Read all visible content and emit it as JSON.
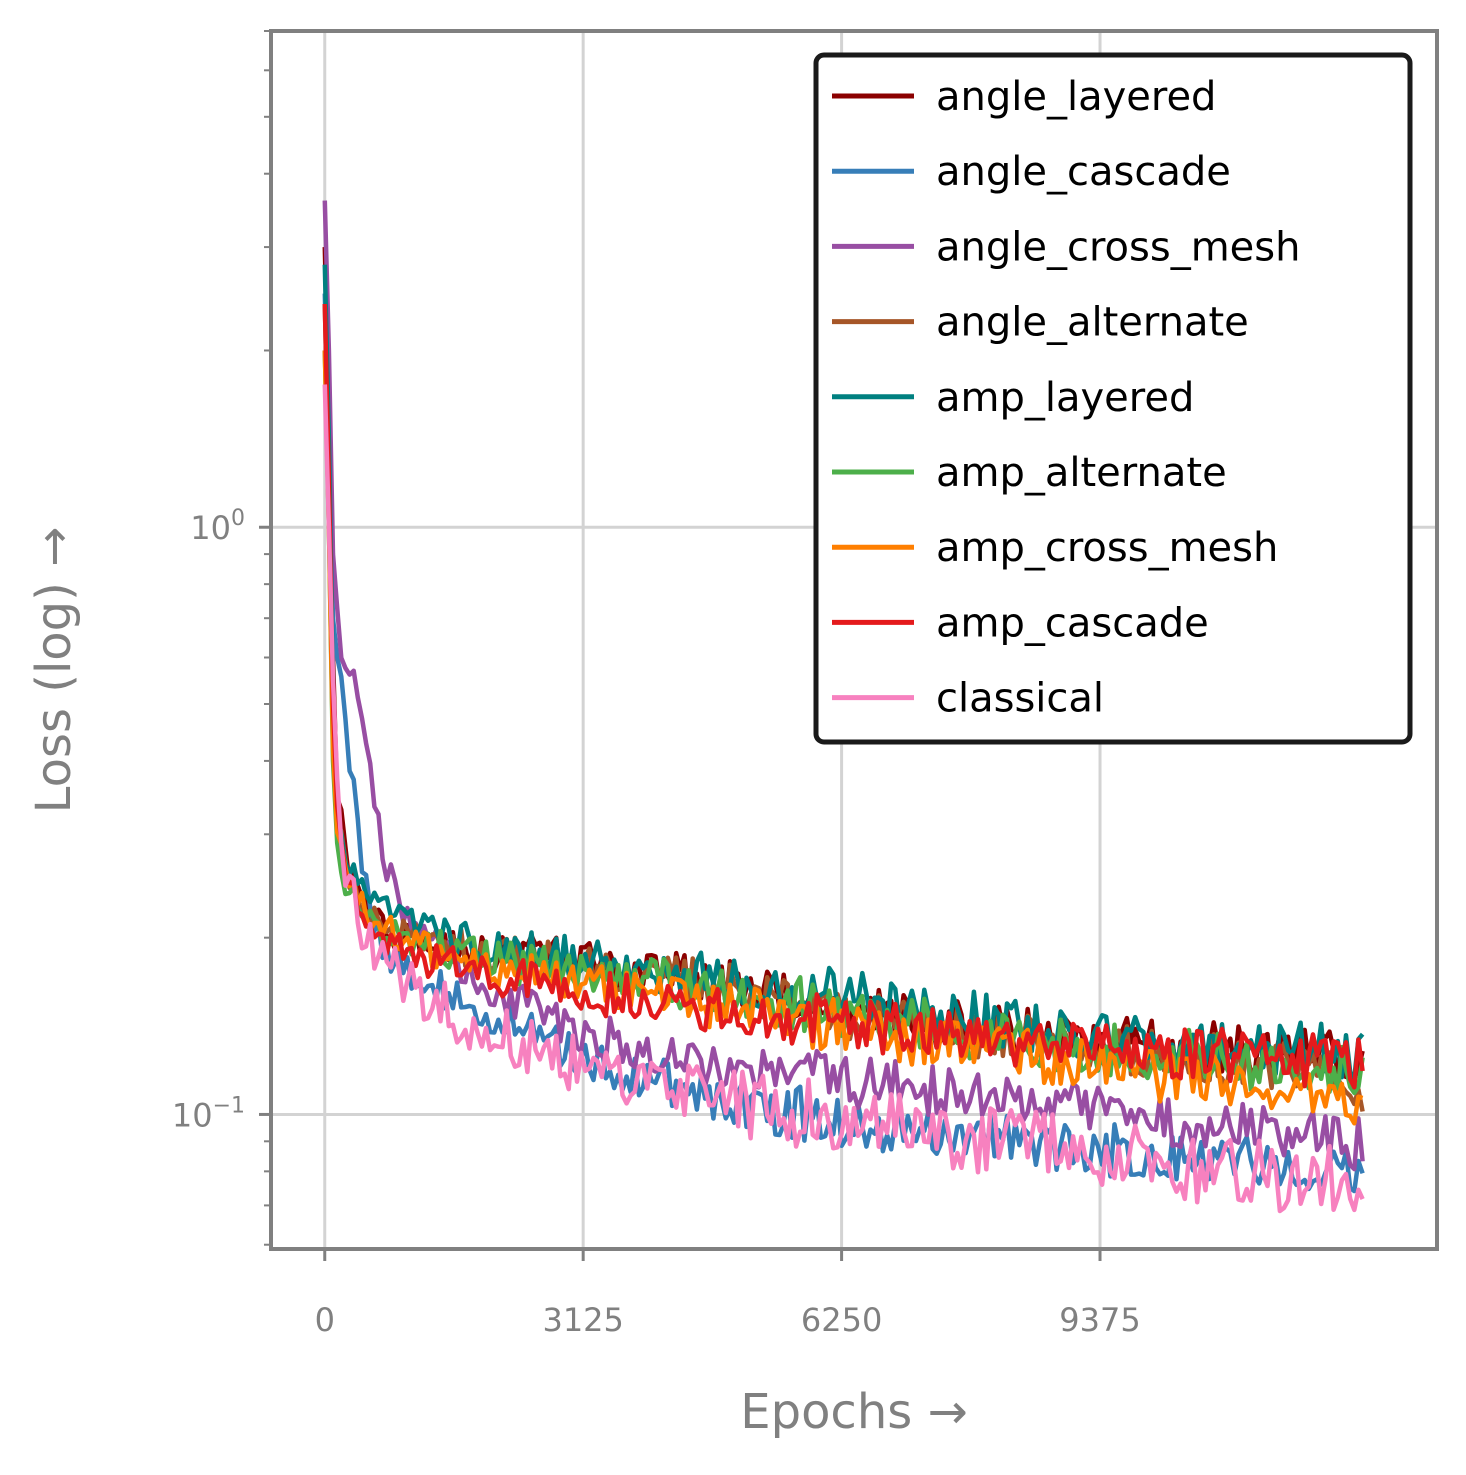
{
  "chart_data": {
    "type": "line",
    "xlabel": "Epochs →",
    "ylabel": "Loss (log) →",
    "yscale": "log",
    "xlim": [
      -650,
      13450
    ],
    "ylim": [
      0.059,
      7.0
    ],
    "xticks": [
      0,
      3125,
      6250,
      9375
    ],
    "yticks": [
      {
        "value": 1.0,
        "base": "10",
        "exp": "0"
      },
      {
        "value": 0.1,
        "base": "10",
        "exp": "−1"
      }
    ],
    "grid": true,
    "legend_position": "top-right",
    "series": [
      {
        "name": "angle_layered",
        "color": "#8b0000",
        "points": [
          [
            0,
            3.0
          ],
          [
            50,
            1.5
          ],
          [
            100,
            0.6
          ],
          [
            150,
            0.36
          ],
          [
            250,
            0.27
          ],
          [
            400,
            0.235
          ],
          [
            600,
            0.215
          ],
          [
            900,
            0.2
          ],
          [
            1300,
            0.195
          ],
          [
            1800,
            0.19
          ],
          [
            2300,
            0.187
          ],
          [
            2800,
            0.185
          ],
          [
            3300,
            0.18
          ],
          [
            3800,
            0.176
          ],
          [
            4300,
            0.172
          ],
          [
            4800,
            0.167
          ],
          [
            5300,
            0.161
          ],
          [
            5800,
            0.156
          ],
          [
            6300,
            0.151
          ],
          [
            6800,
            0.147
          ],
          [
            7300,
            0.143
          ],
          [
            7800,
            0.14
          ],
          [
            8300,
            0.137
          ],
          [
            8800,
            0.135
          ],
          [
            9300,
            0.133
          ],
          [
            9800,
            0.131
          ],
          [
            10300,
            0.13
          ],
          [
            10800,
            0.129
          ],
          [
            11300,
            0.128
          ],
          [
            11800,
            0.128
          ],
          [
            12300,
            0.127
          ],
          [
            12550,
            0.128
          ]
        ]
      },
      {
        "name": "angle_cascade",
        "color": "#377eb8",
        "points": [
          [
            0,
            2.5
          ],
          [
            50,
            1.3
          ],
          [
            100,
            0.7
          ],
          [
            200,
            0.55
          ],
          [
            300,
            0.4
          ],
          [
            450,
            0.27
          ],
          [
            600,
            0.21
          ],
          [
            800,
            0.185
          ],
          [
            1100,
            0.172
          ],
          [
            1500,
            0.16
          ],
          [
            2000,
            0.148
          ],
          [
            2500,
            0.137
          ],
          [
            3000,
            0.127
          ],
          [
            3500,
            0.12
          ],
          [
            4000,
            0.114
          ],
          [
            4500,
            0.109
          ],
          [
            5000,
            0.105
          ],
          [
            5500,
            0.102
          ],
          [
            6000,
            0.099
          ],
          [
            6500,
            0.097
          ],
          [
            7000,
            0.095
          ],
          [
            7500,
            0.093
          ],
          [
            8000,
            0.092
          ],
          [
            8500,
            0.09
          ],
          [
            9000,
            0.089
          ],
          [
            9500,
            0.087
          ],
          [
            10000,
            0.086
          ],
          [
            10500,
            0.085
          ],
          [
            11000,
            0.084
          ],
          [
            11500,
            0.083
          ],
          [
            12000,
            0.082
          ],
          [
            12550,
            0.082
          ]
        ]
      },
      {
        "name": "angle_cross_mesh",
        "color": "#984ea3",
        "points": [
          [
            0,
            3.6
          ],
          [
            50,
            2.0
          ],
          [
            100,
            0.9
          ],
          [
            200,
            0.62
          ],
          [
            300,
            0.58
          ],
          [
            400,
            0.5
          ],
          [
            500,
            0.42
          ],
          [
            600,
            0.35
          ],
          [
            700,
            0.28
          ],
          [
            850,
            0.24
          ],
          [
            1000,
            0.215
          ],
          [
            1300,
            0.195
          ],
          [
            1700,
            0.175
          ],
          [
            2200,
            0.158
          ],
          [
            2700,
            0.145
          ],
          [
            3200,
            0.137
          ],
          [
            3700,
            0.131
          ],
          [
            4200,
            0.126
          ],
          [
            4700,
            0.122
          ],
          [
            5200,
            0.119
          ],
          [
            5700,
            0.117
          ],
          [
            6200,
            0.114
          ],
          [
            6700,
            0.112
          ],
          [
            7200,
            0.11
          ],
          [
            7700,
            0.108
          ],
          [
            8200,
            0.106
          ],
          [
            8700,
            0.104
          ],
          [
            9200,
            0.102
          ],
          [
            9700,
            0.1
          ],
          [
            10200,
            0.098
          ],
          [
            10700,
            0.096
          ],
          [
            11200,
            0.094
          ],
          [
            11700,
            0.092
          ],
          [
            12200,
            0.09
          ],
          [
            12550,
            0.089
          ]
        ]
      },
      {
        "name": "angle_alternate",
        "color": "#a65628",
        "points": [
          [
            0,
            2.4
          ],
          [
            50,
            1.2
          ],
          [
            100,
            0.5
          ],
          [
            150,
            0.32
          ],
          [
            250,
            0.26
          ],
          [
            400,
            0.23
          ],
          [
            600,
            0.21
          ],
          [
            900,
            0.2
          ],
          [
            1300,
            0.195
          ],
          [
            1800,
            0.19
          ],
          [
            2300,
            0.186
          ],
          [
            2800,
            0.182
          ],
          [
            3300,
            0.178
          ],
          [
            3800,
            0.174
          ],
          [
            4300,
            0.17
          ],
          [
            4800,
            0.165
          ],
          [
            5300,
            0.16
          ],
          [
            5800,
            0.155
          ],
          [
            6300,
            0.15
          ],
          [
            6800,
            0.145
          ],
          [
            7300,
            0.141
          ],
          [
            7800,
            0.137
          ],
          [
            8300,
            0.134
          ],
          [
            8800,
            0.131
          ],
          [
            9300,
            0.129
          ],
          [
            9800,
            0.127
          ],
          [
            10300,
            0.125
          ],
          [
            10800,
            0.123
          ],
          [
            11300,
            0.121
          ],
          [
            11800,
            0.12
          ],
          [
            12300,
            0.12
          ],
          [
            12550,
            0.112
          ]
        ]
      },
      {
        "name": "amp_layered",
        "color": "#008080",
        "points": [
          [
            0,
            2.8
          ],
          [
            50,
            1.4
          ],
          [
            100,
            0.55
          ],
          [
            150,
            0.33
          ],
          [
            250,
            0.27
          ],
          [
            400,
            0.245
          ],
          [
            600,
            0.228
          ],
          [
            900,
            0.215
          ],
          [
            1300,
            0.205
          ],
          [
            1800,
            0.197
          ],
          [
            2300,
            0.191
          ],
          [
            2800,
            0.186
          ],
          [
            3300,
            0.182
          ],
          [
            3800,
            0.178
          ],
          [
            4300,
            0.175
          ],
          [
            4800,
            0.171
          ],
          [
            5300,
            0.167
          ],
          [
            5800,
            0.163
          ],
          [
            6300,
            0.159
          ],
          [
            6800,
            0.155
          ],
          [
            7300,
            0.151
          ],
          [
            7800,
            0.147
          ],
          [
            8300,
            0.143
          ],
          [
            8800,
            0.14
          ],
          [
            9300,
            0.137
          ],
          [
            9800,
            0.135
          ],
          [
            10300,
            0.133
          ],
          [
            10800,
            0.131
          ],
          [
            11300,
            0.13
          ],
          [
            11800,
            0.129
          ],
          [
            12300,
            0.128
          ],
          [
            12550,
            0.127
          ]
        ]
      },
      {
        "name": "amp_alternate",
        "color": "#4daf4a",
        "points": [
          [
            0,
            2.0
          ],
          [
            50,
            1.0
          ],
          [
            100,
            0.4
          ],
          [
            150,
            0.29
          ],
          [
            250,
            0.25
          ],
          [
            400,
            0.225
          ],
          [
            600,
            0.21
          ],
          [
            900,
            0.2
          ],
          [
            1300,
            0.192
          ],
          [
            1800,
            0.186
          ],
          [
            2300,
            0.181
          ],
          [
            2800,
            0.177
          ],
          [
            3300,
            0.173
          ],
          [
            3800,
            0.17
          ],
          [
            4300,
            0.166
          ],
          [
            4800,
            0.162
          ],
          [
            5300,
            0.158
          ],
          [
            5800,
            0.154
          ],
          [
            6300,
            0.15
          ],
          [
            6800,
            0.146
          ],
          [
            7300,
            0.142
          ],
          [
            7800,
            0.138
          ],
          [
            8300,
            0.135
          ],
          [
            8800,
            0.132
          ],
          [
            9300,
            0.13
          ],
          [
            9800,
            0.128
          ],
          [
            10300,
            0.126
          ],
          [
            10800,
            0.124
          ],
          [
            11300,
            0.122
          ],
          [
            11800,
            0.121
          ],
          [
            12300,
            0.12
          ],
          [
            12550,
            0.12
          ]
        ]
      },
      {
        "name": "amp_cross_mesh",
        "color": "#ff7f00",
        "points": [
          [
            0,
            2.0
          ],
          [
            50,
            1.0
          ],
          [
            100,
            0.42
          ],
          [
            150,
            0.3
          ],
          [
            250,
            0.255
          ],
          [
            400,
            0.23
          ],
          [
            600,
            0.212
          ],
          [
            900,
            0.198
          ],
          [
            1300,
            0.188
          ],
          [
            1800,
            0.181
          ],
          [
            2300,
            0.175
          ],
          [
            2800,
            0.17
          ],
          [
            3300,
            0.165
          ],
          [
            3800,
            0.161
          ],
          [
            4300,
            0.157
          ],
          [
            4800,
            0.153
          ],
          [
            5300,
            0.149
          ],
          [
            5800,
            0.145
          ],
          [
            6300,
            0.141
          ],
          [
            6800,
            0.137
          ],
          [
            7300,
            0.133
          ],
          [
            7800,
            0.13
          ],
          [
            8300,
            0.127
          ],
          [
            8800,
            0.124
          ],
          [
            9300,
            0.121
          ],
          [
            9800,
            0.118
          ],
          [
            10300,
            0.116
          ],
          [
            10800,
            0.113
          ],
          [
            11300,
            0.111
          ],
          [
            11800,
            0.109
          ],
          [
            12300,
            0.107
          ],
          [
            12550,
            0.106
          ]
        ]
      },
      {
        "name": "amp_cascade",
        "color": "#e41a1c",
        "points": [
          [
            0,
            2.4
          ],
          [
            50,
            1.2
          ],
          [
            100,
            0.5
          ],
          [
            150,
            0.33
          ],
          [
            250,
            0.26
          ],
          [
            400,
            0.225
          ],
          [
            600,
            0.205
          ],
          [
            900,
            0.19
          ],
          [
            1300,
            0.182
          ],
          [
            1800,
            0.176
          ],
          [
            2300,
            0.17
          ],
          [
            2800,
            0.165
          ],
          [
            3300,
            0.161
          ],
          [
            3800,
            0.157
          ],
          [
            4300,
            0.154
          ],
          [
            4800,
            0.151
          ],
          [
            5300,
            0.148
          ],
          [
            5800,
            0.145
          ],
          [
            6300,
            0.143
          ],
          [
            6800,
            0.14
          ],
          [
            7300,
            0.138
          ],
          [
            7800,
            0.136
          ],
          [
            8300,
            0.134
          ],
          [
            8800,
            0.132
          ],
          [
            9300,
            0.13
          ],
          [
            9800,
            0.129
          ],
          [
            10300,
            0.127
          ],
          [
            10800,
            0.126
          ],
          [
            11300,
            0.125
          ],
          [
            11800,
            0.124
          ],
          [
            12300,
            0.123
          ],
          [
            12550,
            0.122
          ]
        ]
      },
      {
        "name": "classical",
        "color": "#f781bf",
        "points": [
          [
            0,
            1.75
          ],
          [
            50,
            1.0
          ],
          [
            100,
            0.55
          ],
          [
            150,
            0.36
          ],
          [
            250,
            0.27
          ],
          [
            400,
            0.22
          ],
          [
            600,
            0.19
          ],
          [
            900,
            0.17
          ],
          [
            1300,
            0.155
          ],
          [
            1800,
            0.143
          ],
          [
            2300,
            0.133
          ],
          [
            2800,
            0.125
          ],
          [
            3300,
            0.119
          ],
          [
            3800,
            0.114
          ],
          [
            4300,
            0.11
          ],
          [
            4800,
            0.106
          ],
          [
            5300,
            0.103
          ],
          [
            5800,
            0.1
          ],
          [
            6300,
            0.098
          ],
          [
            6800,
            0.096
          ],
          [
            7300,
            0.094
          ],
          [
            7800,
            0.092
          ],
          [
            8300,
            0.09
          ],
          [
            8800,
            0.088
          ],
          [
            9300,
            0.086
          ],
          [
            9800,
            0.084
          ],
          [
            10300,
            0.082
          ],
          [
            10800,
            0.08
          ],
          [
            11300,
            0.079
          ],
          [
            11800,
            0.078
          ],
          [
            12300,
            0.078
          ],
          [
            12550,
            0.078
          ]
        ]
      }
    ]
  }
}
